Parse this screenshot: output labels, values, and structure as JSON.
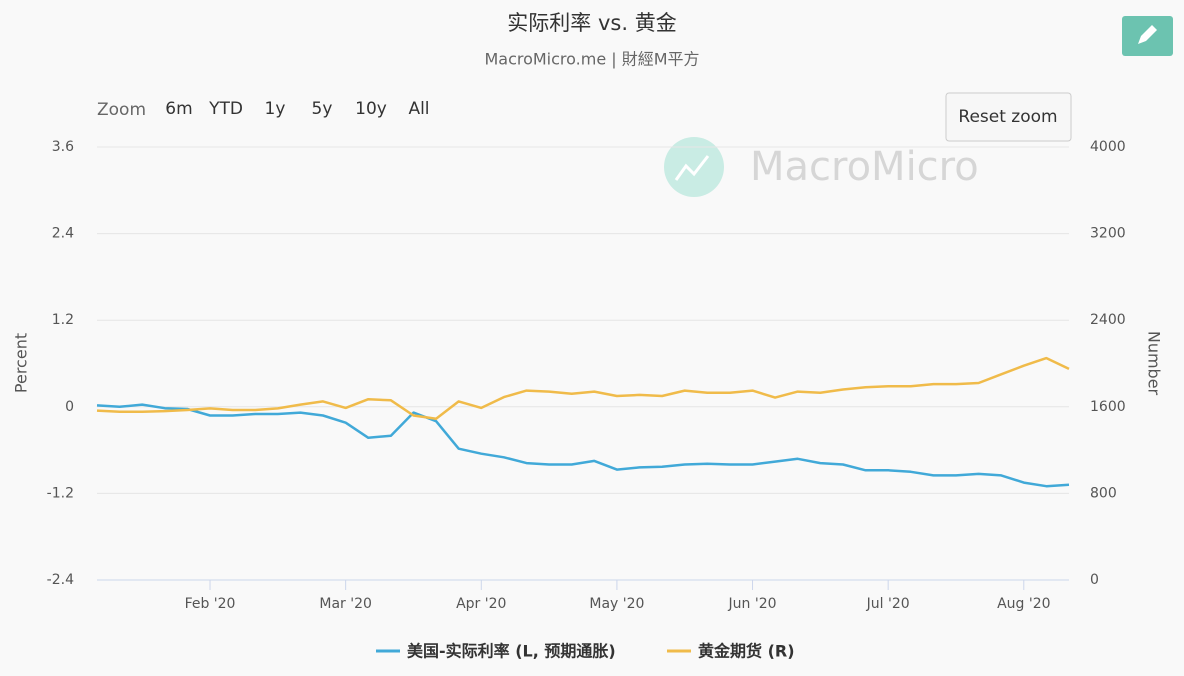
{
  "chart_data": {
    "type": "line",
    "title": "实际利率 vs. 黄金",
    "subtitle": "MacroMicro.me | 財經M平方",
    "y_label": "Percent",
    "y2_label": "Number",
    "categories": [
      null,
      null,
      null,
      null,
      null,
      "Feb '20",
      null,
      null,
      null,
      null,
      null,
      "Mar '20",
      null,
      null,
      null,
      null,
      null,
      "Apr '20",
      null,
      null,
      null,
      null,
      null,
      "May '20",
      null,
      null,
      null,
      null,
      null,
      "Jun '20",
      null,
      null,
      null,
      null,
      null,
      "Jul '20",
      null,
      null,
      null,
      null,
      null,
      "Aug '20",
      null,
      null
    ],
    "ylim": [
      -2.4,
      3.6
    ],
    "yticks": [
      -2.4,
      -1.2,
      0,
      1.2,
      2.4,
      3.6
    ],
    "y2lim": [
      0,
      4000
    ],
    "y2ticks": [
      0,
      800,
      1600,
      2400,
      3200,
      4000
    ],
    "grid": true,
    "series": [
      {
        "name": "美国-实际利率 (L, 预期通胀)",
        "color": "#41a9d8",
        "values": [
          0.02,
          0.0,
          0.03,
          -0.02,
          -0.03,
          -0.12,
          -0.12,
          -0.1,
          -0.1,
          -0.08,
          -0.12,
          -0.22,
          -0.43,
          -0.4,
          -0.08,
          -0.2,
          -0.58,
          -0.65,
          -0.7,
          -0.78,
          -0.8,
          -0.8,
          -0.75,
          -0.87,
          -0.84,
          -0.83,
          -0.8,
          -0.79,
          -0.8,
          -0.8,
          -0.76,
          -0.72,
          -0.78,
          -0.8,
          -0.88,
          -0.88,
          -0.9,
          -0.95,
          -0.95,
          -0.93,
          -0.95,
          -1.05,
          -1.1,
          -1.08
        ]
      },
      {
        "name": "黄金期货 (R)",
        "color": "#f0bb4a",
        "axis": "y2",
        "values": [
          1565,
          1555,
          1555,
          1560,
          1570,
          1585,
          1570,
          1570,
          1585,
          1620,
          1650,
          1590,
          1670,
          1660,
          1520,
          1490,
          1650,
          1590,
          1690,
          1750,
          1740,
          1720,
          1740,
          1700,
          1710,
          1700,
          1750,
          1730,
          1730,
          1750,
          1685,
          1740,
          1730,
          1760,
          1780,
          1790,
          1790,
          1810,
          1810,
          1820,
          1900,
          1980,
          2050,
          1950
        ]
      }
    ]
  },
  "toolbar": {
    "zoom_label": "Zoom",
    "buttons": [
      "6m",
      "YTD",
      "1y",
      "5y",
      "10y",
      "All"
    ],
    "reset": "Reset zoom"
  },
  "watermark": "MacroMicro"
}
